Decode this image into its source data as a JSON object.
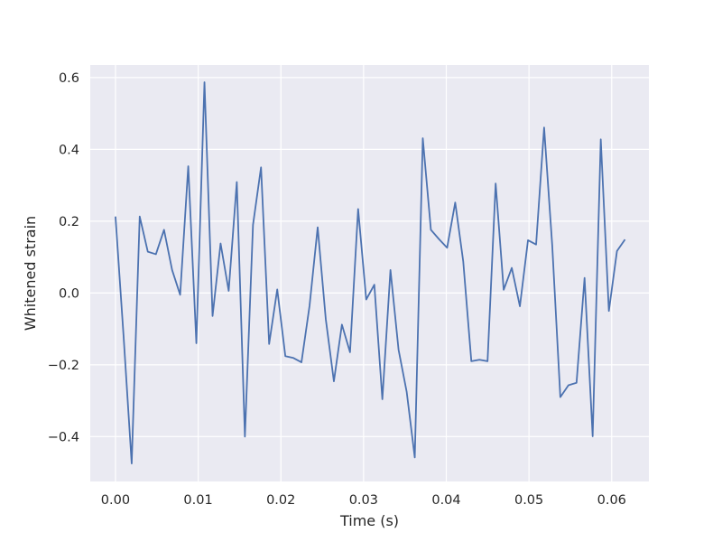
{
  "chart_data": {
    "type": "line",
    "title": "",
    "xlabel": "Time (s)",
    "ylabel": "Whitened strain",
    "xlim": [
      -0.00305,
      0.0645
    ],
    "ylim": [
      -0.525,
      0.635
    ],
    "grid": true,
    "legend": "none",
    "colors": {
      "line": "#4c72b0",
      "background": "#eaeaf2",
      "grid": "#ffffff",
      "text": "#262626"
    },
    "x_ticks": [
      0.0,
      0.01,
      0.02,
      0.03,
      0.04,
      0.05,
      0.06
    ],
    "x_tick_labels": [
      "0.00",
      "0.01",
      "0.02",
      "0.03",
      "0.04",
      "0.05",
      "0.06"
    ],
    "y_ticks": [
      -0.4,
      -0.2,
      0.0,
      0.2,
      0.4,
      0.6
    ],
    "y_tick_labels": [
      "−0.4",
      "−0.2",
      "0.0",
      "0.2",
      "0.4",
      "0.6"
    ],
    "series": [
      {
        "x": [
          0.0,
          0.00098,
          0.00196,
          0.00293,
          0.00391,
          0.00489,
          0.00587,
          0.00685,
          0.00782,
          0.0088,
          0.00978,
          0.01076,
          0.01174,
          0.01271,
          0.01369,
          0.01467,
          0.01565,
          0.01663,
          0.0176,
          0.01858,
          0.01956,
          0.02054,
          0.02152,
          0.02249,
          0.02347,
          0.02445,
          0.02543,
          0.02641,
          0.02738,
          0.02836,
          0.02934,
          0.03032,
          0.0313,
          0.03227,
          0.03325,
          0.03423,
          0.03521,
          0.03619,
          0.03716,
          0.03814,
          0.03912,
          0.0401,
          0.04108,
          0.04205,
          0.04303,
          0.04401,
          0.04499,
          0.04597,
          0.04694,
          0.04792,
          0.0489,
          0.04988,
          0.05086,
          0.05183,
          0.05281,
          0.05379,
          0.05477,
          0.05575,
          0.05672,
          0.0577,
          0.05868,
          0.05966,
          0.06064,
          0.06161
        ],
        "y": [
          0.213,
          -0.12,
          -0.475,
          0.213,
          0.115,
          0.108,
          0.176,
          0.064,
          -0.005,
          0.353,
          -0.14,
          0.587,
          -0.064,
          0.138,
          0.006,
          0.309,
          -0.4,
          0.19,
          0.35,
          -0.142,
          0.01,
          -0.176,
          -0.181,
          -0.193,
          -0.035,
          0.183,
          -0.073,
          -0.246,
          -0.088,
          -0.165,
          0.234,
          -0.018,
          0.023,
          -0.296,
          0.064,
          -0.158,
          -0.275,
          -0.458,
          0.431,
          0.176,
          0.15,
          0.126,
          0.252,
          0.088,
          -0.19,
          -0.186,
          -0.19,
          0.305,
          0.009,
          0.07,
          -0.037,
          0.147,
          0.135,
          0.461,
          0.133,
          -0.29,
          -0.257,
          -0.25,
          0.042,
          -0.399,
          0.428,
          -0.05,
          0.117,
          0.149
        ]
      }
    ]
  }
}
